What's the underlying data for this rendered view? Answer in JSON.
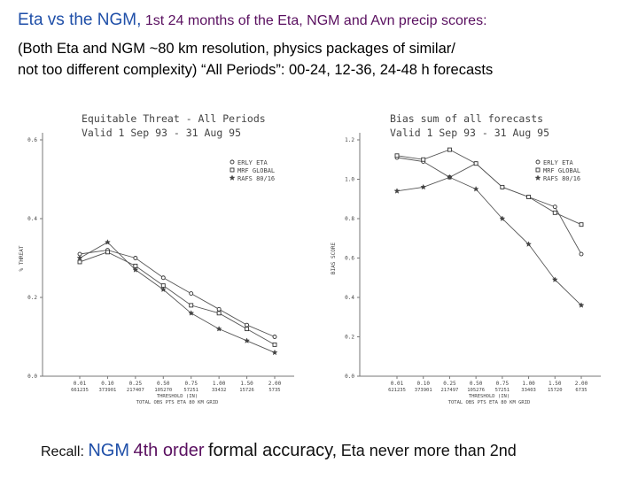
{
  "header": {
    "title_part1": "Eta vs the NGM,",
    "title_part2": "1st 24 months of the Eta, NGM and Avn precip scores:",
    "subtitle_line1": "(Both Eta and NGM ~80 km resolution, physics packages of similar/",
    "subtitle_line2": "not too different complexity)   “All Periods”:  00-24, 12-36, 24-48 h forecasts"
  },
  "footer": {
    "recall_label": "Recall:",
    "recall_ngm": "NGM",
    "recall_order": "4th order",
    "recall_formal": "formal accuracy,",
    "recall_eta": "Eta never more than 2nd"
  },
  "colors": {
    "accent_blue": "#1f4fa8",
    "accent_purple": "#5a1060"
  },
  "chart_data": [
    {
      "type": "line",
      "title": "Equitable Threat - All Periods",
      "subtitle": "Valid  1 Sep 93 - 31 Aug 95",
      "ylabel": "% THREAT",
      "xlabel": "THRESHOLD (IN)",
      "xlabel2": "TOTAL OBS PTS ETA 80 KM GRID",
      "categories": [
        "0.01",
        "0.10",
        "0.25",
        "0.50",
        "0.75",
        "1.00",
        "1.50",
        "2.00"
      ],
      "counts": [
        "661235",
        "373901",
        "217407",
        "105270",
        "57251",
        "33432",
        "15726",
        "5735"
      ],
      "ylim": [
        0,
        0.6
      ],
      "yticks": [
        "0.0",
        "0.2",
        "0.4",
        "0.6"
      ],
      "legend_position": "top-right",
      "series": [
        {
          "name": "ERLY ETA",
          "marker": "circle",
          "values": [
            0.31,
            0.32,
            0.3,
            0.25,
            0.21,
            0.17,
            0.13,
            0.1
          ]
        },
        {
          "name": "MRF GLOBAL",
          "marker": "square",
          "values": [
            0.29,
            0.315,
            0.28,
            0.23,
            0.18,
            0.16,
            0.12,
            0.08
          ]
        },
        {
          "name": "RAFS 80/16",
          "marker": "star",
          "values": [
            0.3,
            0.34,
            0.27,
            0.22,
            0.16,
            0.12,
            0.09,
            0.06
          ]
        }
      ]
    },
    {
      "type": "line",
      "title": "Bias sum of all forecasts",
      "subtitle": "Valid  1 Sep 93 - 31 Aug 95",
      "ylabel": "BIAS SCORE",
      "xlabel": "THRESHOLD (IN)",
      "xlabel2": "TOTAL OBS PTS ETA 80 KM GRID",
      "categories": [
        "0.01",
        "0.10",
        "0.25",
        "0.50",
        "0.75",
        "1.00",
        "1.50",
        "2.00"
      ],
      "counts": [
        "621235",
        "373901",
        "217497",
        "105276",
        "57251",
        "33403",
        "15720",
        "6735"
      ],
      "ylim": [
        0,
        1.2
      ],
      "yticks": [
        "0.0",
        "0.2",
        "0.4",
        "0.6",
        "0.8",
        "1.0",
        "1.2"
      ],
      "legend_position": "top-right",
      "series": [
        {
          "name": "ERLY ETA",
          "marker": "circle",
          "values": [
            1.11,
            1.09,
            1.01,
            1.08,
            0.96,
            0.91,
            0.86,
            0.62
          ]
        },
        {
          "name": "MRF GLOBAL",
          "marker": "square",
          "values": [
            1.12,
            1.1,
            1.15,
            1.08,
            0.96,
            0.91,
            0.83,
            0.77
          ]
        },
        {
          "name": "RAFS 80/16",
          "marker": "star",
          "values": [
            0.94,
            0.96,
            1.01,
            0.95,
            0.8,
            0.67,
            0.49,
            0.36
          ]
        }
      ]
    }
  ]
}
